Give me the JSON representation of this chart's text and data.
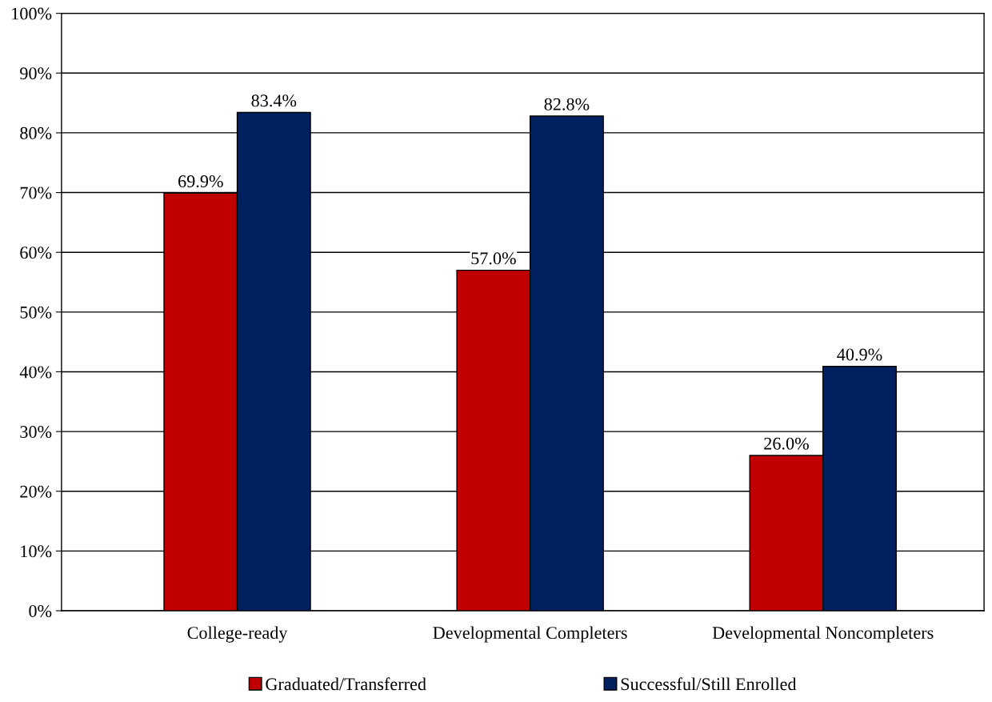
{
  "chart_data": {
    "type": "bar",
    "categories": [
      "College-ready",
      "Developmental Completers",
      "Developmental Noncompleters"
    ],
    "series": [
      {
        "name": "Graduated/Transferred",
        "color": "#c00000",
        "values": [
          69.9,
          57.0,
          26.0
        ],
        "value_labels": [
          "69.9%",
          "57.0%",
          "26.0%"
        ]
      },
      {
        "name": "Successful/Still Enrolled",
        "color": "#002060",
        "values": [
          83.4,
          82.8,
          40.9
        ],
        "value_labels": [
          "83.4%",
          "82.8%",
          "40.9%"
        ]
      }
    ],
    "ylim": [
      0,
      100
    ],
    "yticks": [
      {
        "value": 0,
        "label": "0%"
      },
      {
        "value": 10,
        "label": "10%"
      },
      {
        "value": 20,
        "label": "20%"
      },
      {
        "value": 30,
        "label": "30%"
      },
      {
        "value": 40,
        "label": "40%"
      },
      {
        "value": 50,
        "label": "50%"
      },
      {
        "value": 60,
        "label": "60%"
      },
      {
        "value": 70,
        "label": "70%"
      },
      {
        "value": 80,
        "label": "80%"
      },
      {
        "value": 90,
        "label": "90%"
      },
      {
        "value": 100,
        "label": "100%"
      }
    ],
    "grid": "y",
    "legend": "bottom"
  }
}
